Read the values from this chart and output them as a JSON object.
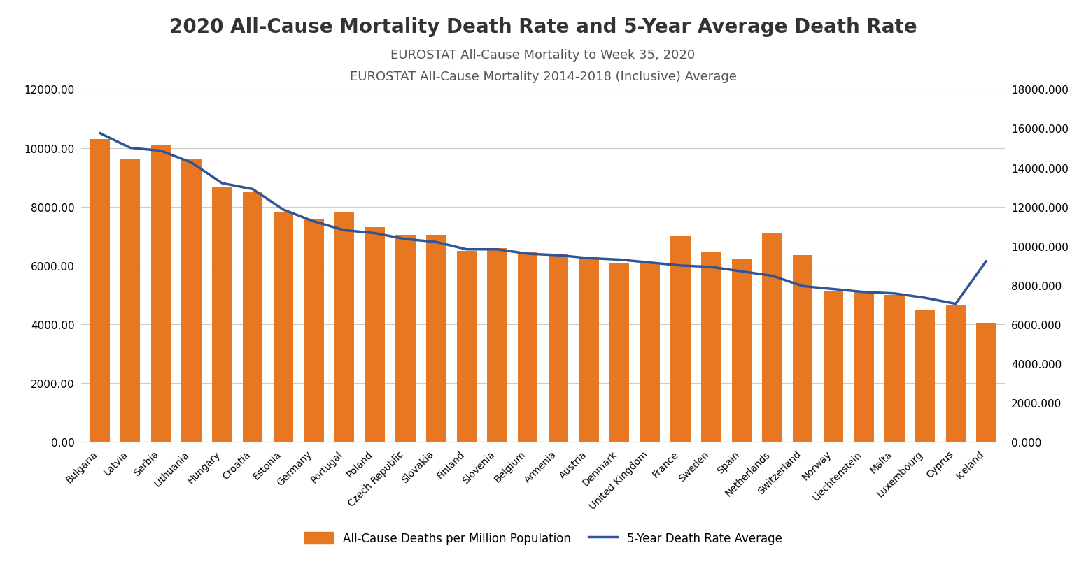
{
  "title": "2020 All-Cause Mortality Death Rate and 5-Year Average Death Rate",
  "subtitle1": "EUROSTAT All-Cause Mortality to Week 35, 2020",
  "subtitle2": "EUROSTAT All-Cause Mortality 2014-2018 (Inclusive) Average",
  "categories": [
    "Bulgaria",
    "Latvia",
    "Serbia",
    "Lithuania",
    "Hungary",
    "Croatia",
    "Estonia",
    "Germany",
    "Portugal",
    "Poland",
    "Czech Republic",
    "Slovakia",
    "Finland",
    "Slovenia",
    "Belgium",
    "Armenia",
    "Austria",
    "Denmark",
    "United Kingdom",
    "France",
    "Sweden",
    "Spain",
    "Netherlands",
    "Switzerland",
    "Norway",
    "Liechtenstein",
    "Malta",
    "Luxembourg",
    "Cyprus",
    "Iceland"
  ],
  "bar_values": [
    10300,
    9600,
    10100,
    9600,
    8650,
    8500,
    7800,
    7600,
    7800,
    7300,
    7050,
    7050,
    6500,
    6600,
    6450,
    6400,
    6300,
    6100,
    6100,
    7000,
    6450,
    6200,
    7100,
    6350,
    5150,
    5100,
    5000,
    4500,
    4650,
    4050
  ],
  "line_values": [
    10500,
    10000,
    9900,
    9500,
    8800,
    8600,
    7900,
    7500,
    7200,
    7100,
    6900,
    6800,
    6550,
    6550,
    6400,
    6350,
    6250,
    6200,
    6100,
    6000,
    5950,
    5800,
    5650,
    5300,
    5200,
    5100,
    5050,
    4900,
    4700,
    6150
  ],
  "bar_color": "#E87722",
  "line_color": "#2F5597",
  "ylim_left": [
    0,
    12000
  ],
  "ylim_right": [
    0,
    18000
  ],
  "yticks_left": [
    0,
    2000,
    4000,
    6000,
    8000,
    10000,
    12000
  ],
  "yticks_right": [
    0,
    2000,
    4000,
    6000,
    8000,
    10000,
    12000,
    14000,
    16000,
    18000
  ],
  "background_color": "#ffffff",
  "legend_bar_label": "All-Cause Deaths per Million Population",
  "legend_line_label": "5-Year Death Rate Average",
  "title_fontsize": 20,
  "subtitle_fontsize": 13,
  "tick_fontsize": 11,
  "xlabel_fontsize": 10
}
